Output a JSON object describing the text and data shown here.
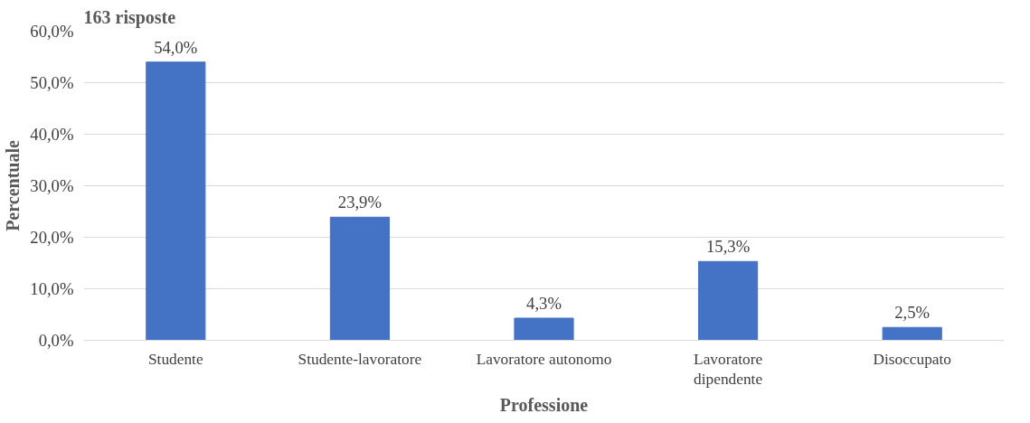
{
  "chart_data": {
    "type": "bar",
    "title": "163 risposte",
    "xlabel": "Professione",
    "ylabel": "Percentuale",
    "categories": [
      "Studente",
      "Studente-lavoratore",
      "Lavoratore autonomo",
      "Lavoratore dipendente",
      "Disoccupato"
    ],
    "values": [
      54.0,
      23.9,
      4.3,
      15.3,
      2.5
    ],
    "color": "#4472c4",
    "value_labels": [
      "54,0%",
      "23,9%",
      "4,3%",
      "15,3%",
      "2,5%"
    ],
    "ylim": [
      0,
      60
    ],
    "yticks": [
      {
        "value": 0,
        "label": "0,0%"
      },
      {
        "value": 10,
        "label": "10,0%"
      },
      {
        "value": 20,
        "label": "20,0%"
      },
      {
        "value": 30,
        "label": "30,0%"
      },
      {
        "value": 40,
        "label": "40,0%"
      },
      {
        "value": 50,
        "label": "50,0%"
      },
      {
        "value": 60,
        "label": "60,0%"
      }
    ],
    "grid": "y"
  }
}
